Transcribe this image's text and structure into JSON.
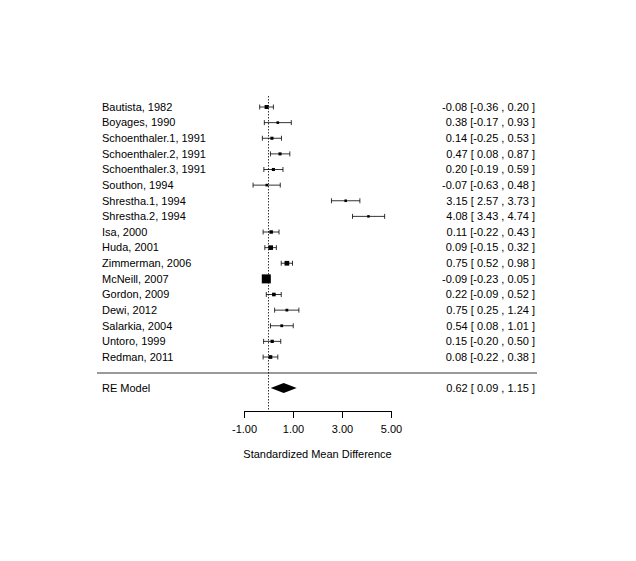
{
  "chart_data": {
    "type": "forest",
    "categories": [
      "Bautista, 1982",
      "Boyages, 1990",
      "Schoenthaler.1, 1991",
      "Schoenthaler.2, 1991",
      "Schoenthaler.3, 1991",
      "Southon, 1994",
      "Shrestha.1, 1994",
      "Shrestha.2, 1994",
      "Isa, 2000",
      "Huda, 2001",
      "Zimmerman, 2006",
      "McNeill, 2007",
      "Gordon, 2009",
      "Dewi, 2012",
      "Salarkia, 2004",
      "Untoro, 1999",
      "Redman, 2011"
    ],
    "values": [
      -0.08,
      0.38,
      0.14,
      0.47,
      0.2,
      -0.07,
      3.15,
      4.08,
      0.11,
      0.09,
      0.75,
      -0.09,
      0.22,
      0.75,
      0.54,
      0.15,
      0.08
    ],
    "ci_lower": [
      -0.36,
      -0.17,
      -0.25,
      0.08,
      -0.19,
      -0.63,
      2.57,
      3.43,
      -0.22,
      -0.15,
      0.52,
      -0.23,
      -0.09,
      0.25,
      0.08,
      -0.2,
      -0.22
    ],
    "ci_upper": [
      0.2,
      0.93,
      0.53,
      0.87,
      0.59,
      0.48,
      3.73,
      4.74,
      0.43,
      0.32,
      0.98,
      0.05,
      0.52,
      1.24,
      1.01,
      0.5,
      0.38
    ],
    "value_labels": [
      "-0.08 [-0.36 , 0.20 ]",
      "0.38 [-0.17 , 0.93 ]",
      "0.14 [-0.25 , 0.53 ]",
      "0.47 [ 0.08 , 0.87 ]",
      "0.20 [-0.19 , 0.59 ]",
      "-0.07 [-0.63 , 0.48 ]",
      "3.15 [ 2.57 , 3.73 ]",
      "4.08 [ 3.43 , 4.74 ]",
      "0.11 [-0.22 , 0.43 ]",
      "0.09 [-0.15 , 0.32 ]",
      "0.75 [ 0.52 , 0.98 ]",
      "-0.09 [-0.23 , 0.05 ]",
      "0.22 [-0.09 , 0.52 ]",
      "0.75 [ 0.25 , 1.24 ]",
      "0.54 [ 0.08 , 1.01 ]",
      "0.15 [-0.20 , 0.50 ]",
      "0.08 [-0.22 , 0.38 ]"
    ],
    "summary": {
      "name": "RE Model",
      "value": 0.62,
      "ci_lower": 0.09,
      "ci_upper": 1.15,
      "value_label": "0.62 [ 0.09 , 1.15 ]"
    },
    "x_label": "Standardized Mean Difference",
    "xlim": [
      -1,
      5
    ],
    "xticks": [
      {
        "value": -1,
        "label": "-1.00"
      },
      {
        "value": 1,
        "label": "1.00"
      },
      {
        "value": 3,
        "label": "3.00"
      },
      {
        "value": 5,
        "label": "5.00"
      }
    ],
    "reference_line": 0
  }
}
